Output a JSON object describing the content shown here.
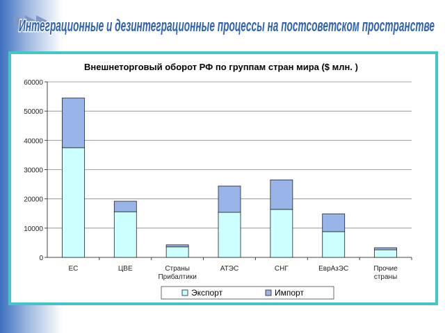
{
  "title": "Интеграционные и дезинтеграционные  процессы на постсоветском пространстве",
  "chart_data": {
    "type": "stacked_bar",
    "title": "Внешнеторговый оборот РФ по группам стран мира ($ млн. )",
    "categories": [
      "ЕС",
      "ЦВЕ",
      "Страны Прибалтики",
      "АТЭС",
      "СНГ",
      "ЕврАзЭС",
      "Прочие страны"
    ],
    "series": [
      {
        "name": "Экспорт",
        "color": "#ccffff",
        "values": [
          37500,
          15600,
          3600,
          15400,
          16400,
          8800,
          2600
        ]
      },
      {
        "name": "Импорт",
        "color": "#99b4e8",
        "values": [
          17000,
          3600,
          700,
          9000,
          10100,
          6100,
          700
        ]
      }
    ],
    "ylim": [
      0,
      60000
    ],
    "yticks": [
      0,
      10000,
      20000,
      30000,
      40000,
      50000,
      60000
    ],
    "grid": true,
    "legend": "bottom"
  }
}
